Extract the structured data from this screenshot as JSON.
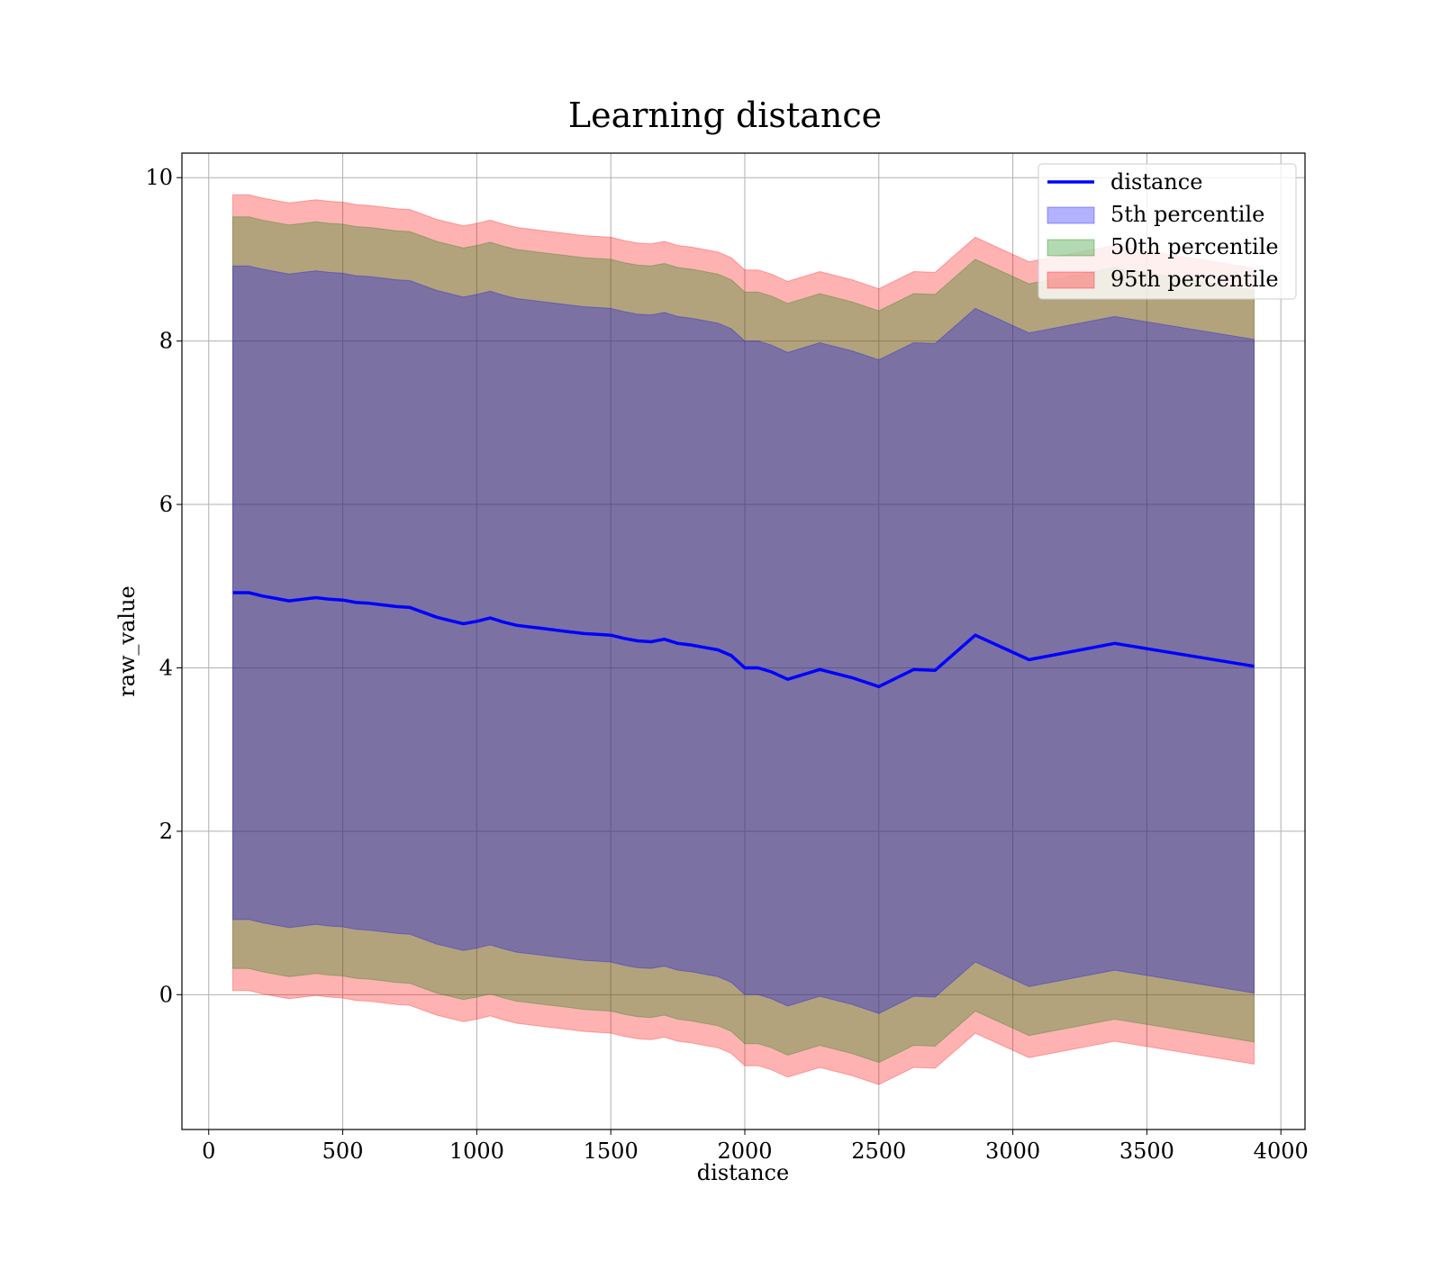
{
  "chart_data": {
    "type": "area",
    "title": "Learning distance",
    "xlabel": "distance",
    "ylabel": "raw_value",
    "xlim": [
      -100,
      4090
    ],
    "ylim": [
      -1.65,
      10.3
    ],
    "xticks": [
      0,
      500,
      1000,
      1500,
      2000,
      2500,
      3000,
      3500,
      4000
    ],
    "yticks": [
      0,
      2,
      4,
      6,
      8,
      10
    ],
    "grid": true,
    "legend_position": "top-right",
    "x": [
      90,
      150,
      200,
      250,
      300,
      350,
      400,
      450,
      500,
      550,
      600,
      650,
      700,
      750,
      800,
      850,
      900,
      950,
      1000,
      1050,
      1100,
      1150,
      1200,
      1250,
      1300,
      1350,
      1400,
      1450,
      1500,
      1550,
      1600,
      1650,
      1700,
      1750,
      1800,
      1850,
      1900,
      1950,
      2000,
      2050,
      2100,
      2160,
      2280,
      2400,
      2500,
      2630,
      2710,
      2860,
      3060,
      3380,
      3900
    ],
    "line": {
      "name": "distance",
      "color": "#0000ff",
      "values": [
        4.92,
        4.92,
        4.88,
        4.85,
        4.82,
        4.84,
        4.86,
        4.84,
        4.83,
        4.8,
        4.79,
        4.77,
        4.75,
        4.74,
        4.68,
        4.62,
        4.58,
        4.54,
        4.57,
        4.61,
        4.56,
        4.52,
        4.5,
        4.48,
        4.46,
        4.44,
        4.42,
        4.41,
        4.4,
        4.36,
        4.33,
        4.32,
        4.35,
        4.3,
        4.28,
        4.25,
        4.22,
        4.15,
        4.0,
        4.0,
        3.95,
        3.86,
        3.98,
        3.88,
        3.77,
        3.98,
        3.97,
        4.4,
        4.1,
        4.3,
        4.02
      ]
    },
    "bands": [
      {
        "name": "5th percentile",
        "color": "#0000ff",
        "opacity": 0.3,
        "offset": 4.0
      },
      {
        "name": "50th percentile",
        "color": "#008000",
        "opacity": 0.3,
        "offset": 4.6
      },
      {
        "name": "95th percentile",
        "color": "#ff0000",
        "opacity": 0.3,
        "offset": 4.87
      }
    ],
    "legend": [
      "distance",
      "5th percentile",
      "50th percentile",
      "95th percentile"
    ]
  }
}
